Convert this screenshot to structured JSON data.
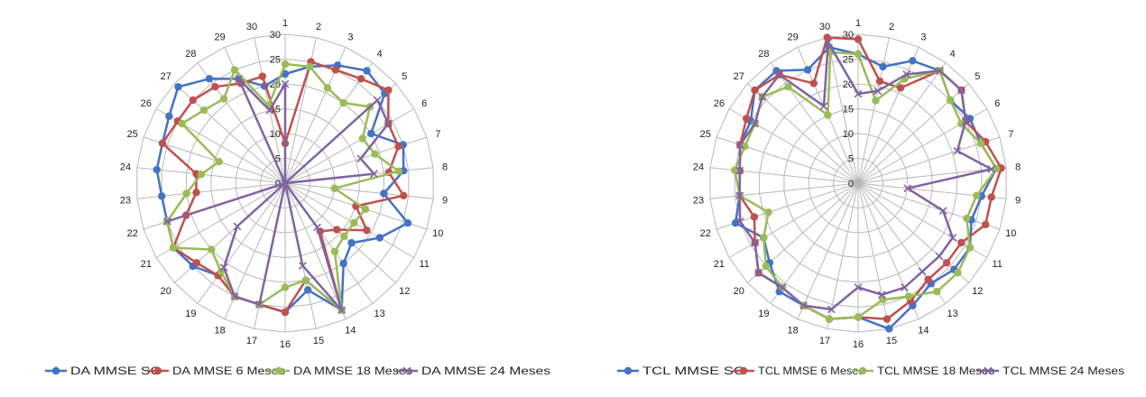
{
  "chart_data": [
    {
      "type": "radar",
      "categories": [
        "1",
        "2",
        "3",
        "4",
        "5",
        "6",
        "7",
        "8",
        "9",
        "10",
        "11",
        "12",
        "13",
        "14",
        "15",
        "16",
        "17",
        "18",
        "19",
        "20",
        "21",
        "22",
        "23",
        "24",
        "25",
        "26",
        "27",
        "28",
        "29",
        "30"
      ],
      "radial_ticks": [
        "0",
        "5",
        "10",
        "15",
        "20",
        "25",
        "30"
      ],
      "rlim": [
        0,
        30
      ],
      "grid": true,
      "legend_position": "bottom",
      "series": [
        {
          "name": "DA MMSE SC",
          "color": "#4472C4",
          "marker": "circle",
          "values": [
            22,
            24,
            26,
            28,
            27,
            20,
            25,
            24,
            20,
            26,
            22,
            18,
            20,
            28,
            22,
            26,
            25,
            25,
            23,
            25,
            26,
            25,
            25,
            26,
            26,
            27,
            29,
            26,
            23,
            20
          ]
        },
        {
          "name": "DA MMSE 6 Meses",
          "color": "#C0504D",
          "marker": "circle",
          "values": [
            8,
            25,
            25,
            26,
            28,
            24,
            24,
            21,
            24,
            15,
            19,
            14,
            12,
            28,
            20,
            26,
            25,
            25,
            23,
            24,
            26,
            21,
            18,
            18,
            26,
            25,
            25,
            24,
            22,
            22
          ]
        },
        {
          "name": "DA MMSE 18 Meses",
          "color": "#9BBB59",
          "marker": "circle",
          "values": [
            24,
            24,
            21,
            20,
            23,
            18,
            19,
            23,
            10,
            17,
            16,
            16,
            17,
            28,
            20,
            21,
            25,
            25,
            22,
            20,
            26,
            25,
            20,
            17,
            14,
            24,
            22,
            21,
            25,
            16
          ]
        },
        {
          "name": "DA MMSE 24 Meses",
          "color": "#8064A2",
          "marker": "x",
          "values": [
            20,
            0,
            0,
            0,
            25,
            24,
            16,
            18,
            0,
            0,
            0,
            0,
            11,
            28,
            17,
            0,
            25,
            25,
            21,
            13,
            0,
            25,
            0,
            0,
            0,
            0,
            0,
            0,
            23,
            15
          ]
        }
      ]
    },
    {
      "type": "radar",
      "categories": [
        "1",
        "2",
        "3",
        "4",
        "5",
        "6",
        "7",
        "8",
        "9",
        "10",
        "11",
        "12",
        "13",
        "14",
        "15",
        "16",
        "17",
        "18",
        "19",
        "20",
        "21",
        "22",
        "23",
        "24",
        "25",
        "26",
        "27",
        "28",
        "29",
        "30"
      ],
      "radial_ticks": [
        "0",
        "5",
        "10",
        "15",
        "20",
        "25",
        "30"
      ],
      "rlim": [
        0,
        30
      ],
      "grid": true,
      "legend_position": "bottom",
      "series": [
        {
          "name": "TCL MMSE SC",
          "color": "#4472C4",
          "marker": "circle",
          "values": [
            26,
            24,
            27,
            28,
            25,
            26,
            26,
            28,
            25,
            24,
            26,
            26,
            25,
            27,
            30,
            27,
            28,
            27,
            27,
            24,
            22,
            26,
            24,
            24,
            25,
            25,
            28,
            28,
            25,
            28
          ]
        },
        {
          "name": "TCL MMSE 6 Meses",
          "color": "#C0504D",
          "marker": "circle",
          "values": [
            29,
            21,
            21,
            28,
            28,
            25,
            27,
            29,
            27,
            27,
            24,
            24,
            24,
            26,
            28,
            27,
            28,
            27,
            26,
            27,
            24,
            22,
            24,
            24,
            25,
            26,
            28,
            27,
            22,
            30
          ]
        },
        {
          "name": "TCL MMSE 18 Meses",
          "color": "#9BBB59",
          "marker": "circle",
          "values": [
            26,
            17,
            23,
            28,
            25,
            24,
            26,
            28,
            24,
            23,
            26,
            27,
            27,
            25,
            24,
            27,
            28,
            27,
            26,
            25,
            22,
            19,
            24,
            25,
            24,
            24,
            26,
            24,
            15,
            27
          ]
        },
        {
          "name": "TCL MMSE 24 Meses",
          "color": "#8064A2",
          "marker": "x",
          "values": [
            18,
            19,
            24,
            28,
            28,
            25,
            21,
            27,
            10,
            18,
            22,
            22,
            22,
            23,
            23,
            21,
            26,
            27,
            26,
            27,
            24,
            25,
            24,
            24,
            25,
            24,
            26,
            27,
            17,
            29
          ]
        }
      ]
    }
  ]
}
